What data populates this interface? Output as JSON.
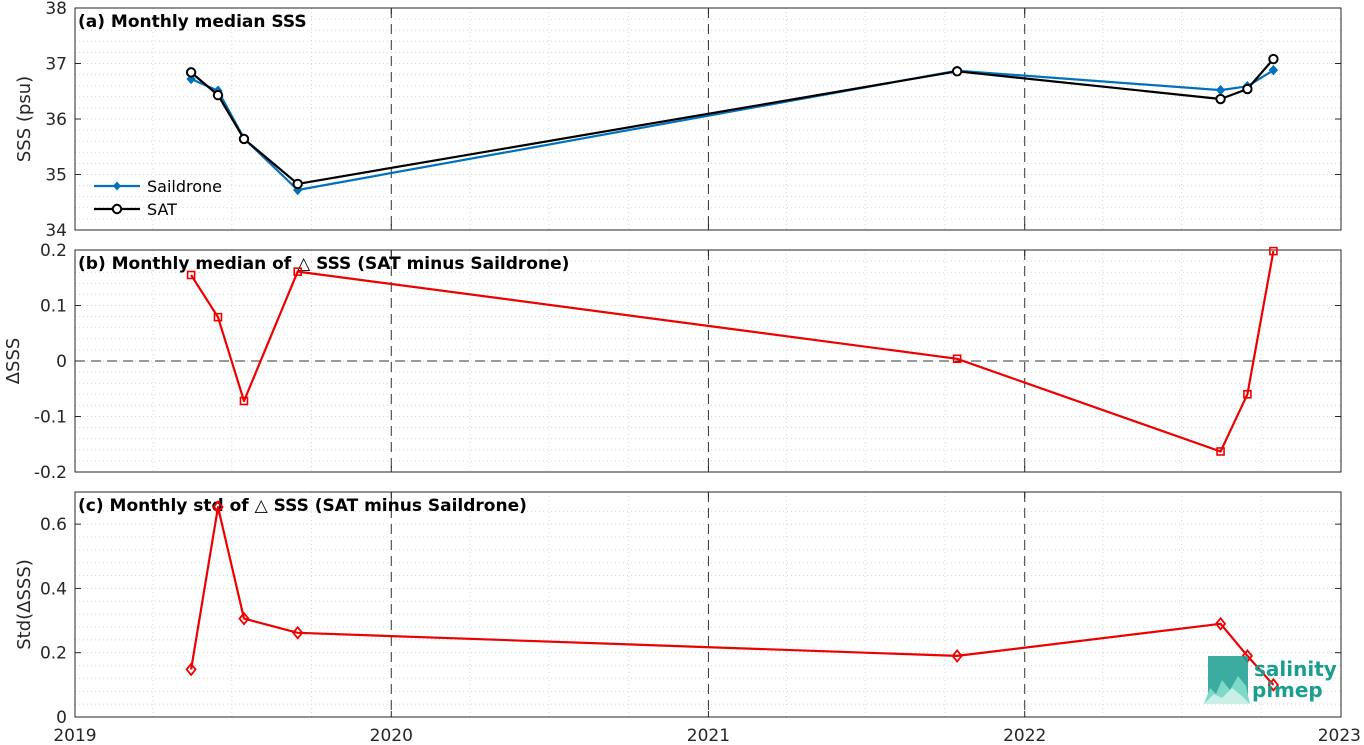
{
  "chart_data": [
    {
      "type": "line",
      "title": "(a) Monthly median SSS",
      "ylabel": "SSS (psu)",
      "ylim": [
        34,
        38
      ],
      "yticks": [
        34,
        35,
        36,
        37,
        38
      ],
      "xlim": [
        "2019-01-01",
        "2023-01-01"
      ],
      "xticks": [
        "2019",
        "2020",
        "2021",
        "2022",
        "2023"
      ],
      "grid": true,
      "legend_position": "bottom-left",
      "colors": {
        "Saildrone": "#0072bd",
        "SAT": "#000000"
      },
      "x": [
        "2019-05-15",
        "2019-06-15",
        "2019-07-15",
        "2019-09-15",
        "2021-10-15",
        "2022-08-15",
        "2022-09-15",
        "2022-10-15"
      ],
      "series": [
        {
          "name": "Saildrone",
          "values": [
            36.72,
            36.51,
            35.65,
            34.72,
            36.87,
            36.52,
            36.59,
            36.88
          ]
        },
        {
          "name": "SAT",
          "values": [
            36.84,
            36.43,
            35.64,
            34.83,
            36.86,
            36.36,
            36.54,
            37.08
          ]
        }
      ]
    },
    {
      "type": "line",
      "title": "(b) Monthly median of △ SSS (SAT minus Saildrone)",
      "ylabel": "ΔSSS",
      "ylim": [
        -0.2,
        0.2
      ],
      "yticks": [
        -0.2,
        -0.1,
        0,
        0.1,
        0.2
      ],
      "ytick_labels": [
        "-0.2",
        "-0.1",
        "0",
        "0.1",
        "0.2"
      ],
      "xlim": [
        "2019-01-01",
        "2023-01-01"
      ],
      "grid": true,
      "zero_line": true,
      "colors": {
        "line": "#ee0000"
      },
      "x": [
        "2019-05-15",
        "2019-06-15",
        "2019-07-15",
        "2019-09-15",
        "2021-10-15",
        "2022-08-15",
        "2022-09-15",
        "2022-10-15"
      ],
      "series": [
        {
          "values": [
            0.155,
            0.079,
            -0.072,
            0.161,
            0.004,
            -0.163,
            -0.06,
            0.198
          ]
        }
      ]
    },
    {
      "type": "line",
      "title": "(c) Monthly std of △ SSS (SAT minus Saildrone)",
      "ylabel": "Std(ΔSSS)",
      "ylim": [
        0,
        0.7
      ],
      "yticks": [
        0,
        0.2,
        0.4,
        0.6
      ],
      "ytick_labels": [
        "0",
        "0.2",
        "0.4",
        "0.6"
      ],
      "xlim": [
        "2019-01-01",
        "2023-01-01"
      ],
      "xticks": [
        "2019",
        "2020",
        "2021",
        "2022",
        "2023"
      ],
      "grid": true,
      "colors": {
        "line": "#ee0000"
      },
      "x": [
        "2019-05-15",
        "2019-06-15",
        "2019-07-15",
        "2019-09-15",
        "2021-10-15",
        "2022-08-15",
        "2022-09-15",
        "2022-10-15"
      ],
      "series": [
        {
          "values": [
            0.148,
            0.653,
            0.306,
            0.262,
            0.19,
            0.29,
            0.19,
            0.1
          ]
        }
      ]
    }
  ],
  "logo": {
    "line1": "salinity",
    "line2": "pi",
    "line3": "mep"
  }
}
